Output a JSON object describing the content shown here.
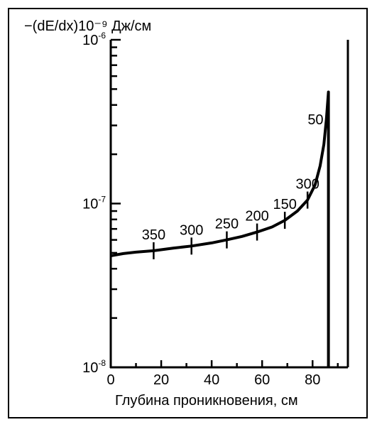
{
  "chart_data": {
    "type": "line",
    "title": "",
    "ylabel": "−(dE/dx)10⁻⁹ Дж/см",
    "xlabel": "Глубина проникновения, см",
    "x_ticks": [
      "0",
      "20",
      "40",
      "60",
      "80"
    ],
    "y_ticks": [
      {
        "base": "10",
        "exp": "-6",
        "value": 1e-06
      },
      {
        "base": "10",
        "exp": "-7",
        "value": 1e-07
      },
      {
        "base": "10",
        "exp": "-8",
        "value": 1e-08
      }
    ],
    "y_scale": "log",
    "xlim": [
      0,
      94
    ],
    "ylim": [
      1e-08,
      1e-06
    ],
    "grid": false,
    "series": [
      {
        "x": [
          0,
          5,
          10,
          17,
          25,
          32,
          40,
          46,
          52,
          58,
          64,
          69,
          74,
          78,
          81,
          83,
          84.5,
          85.5,
          86,
          86.3,
          86.3
        ],
        "y": [
          4.8e-08,
          4.95e-08,
          5.05e-08,
          5.15e-08,
          5.35e-08,
          5.5e-08,
          5.75e-08,
          6e-08,
          6.3e-08,
          6.7e-08,
          7.2e-08,
          7.9e-08,
          9e-08,
          1.05e-07,
          1.3e-07,
          1.7e-07,
          2.3e-07,
          3.3e-07,
          4.2e-07,
          4.8e-07,
          1e-08
        ]
      }
    ],
    "annotations": [
      {
        "label": "350",
        "x": 17
      },
      {
        "label": "300",
        "x": 32
      },
      {
        "label": "250",
        "x": 46
      },
      {
        "label": "200",
        "x": 58
      },
      {
        "label": "150",
        "x": 69
      },
      {
        "label": "300",
        "x": 78
      },
      {
        "label": "50",
        "x": 86
      }
    ]
  }
}
